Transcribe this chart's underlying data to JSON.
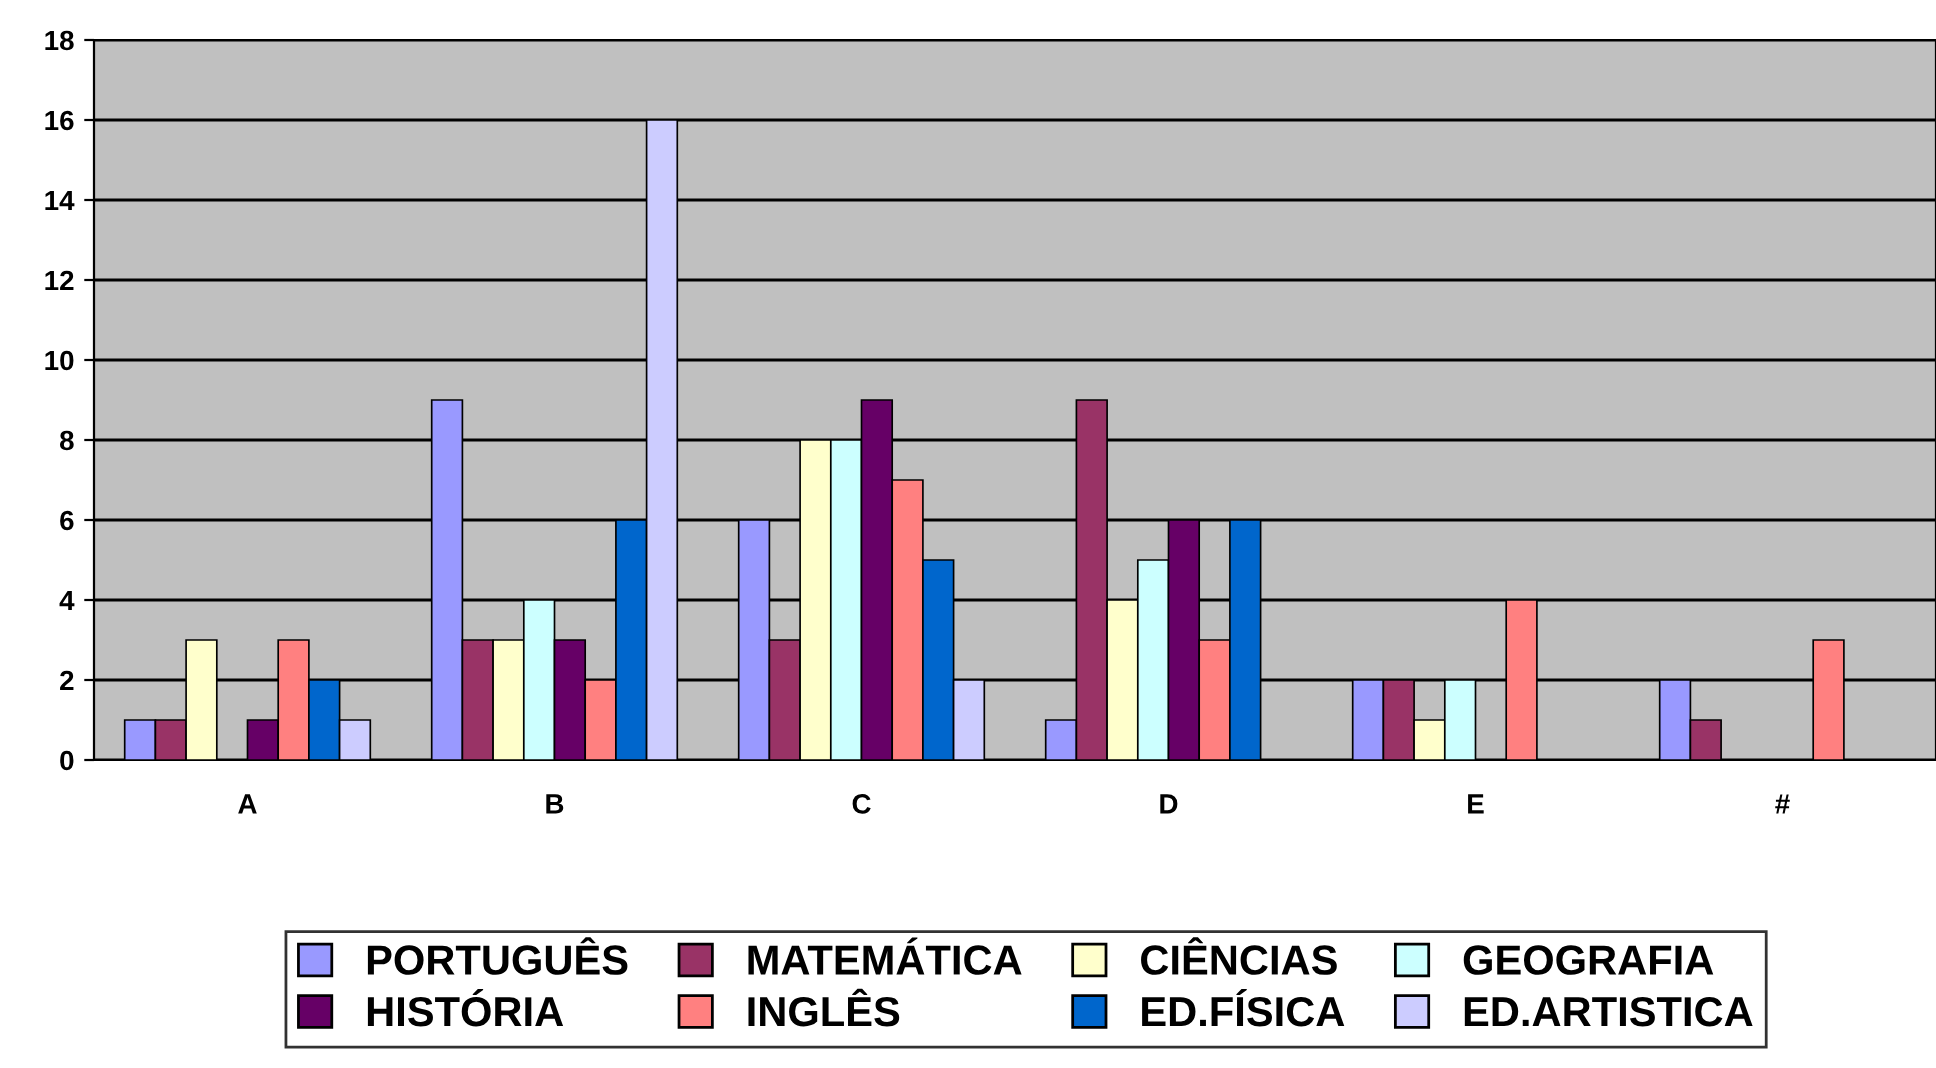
{
  "chart_data": {
    "type": "bar",
    "categories": [
      "A",
      "B",
      "C",
      "D",
      "E",
      "#"
    ],
    "series": [
      {
        "name": "PORTUGUÊS",
        "color": "#9999ff",
        "values": [
          1,
          9,
          6,
          1,
          2,
          2
        ]
      },
      {
        "name": "MATEMÁTICA",
        "color": "#993366",
        "values": [
          1,
          3,
          3,
          9,
          2,
          1
        ]
      },
      {
        "name": "CIÊNCIAS",
        "color": "#ffffcc",
        "values": [
          3,
          3,
          8,
          4,
          1,
          null
        ]
      },
      {
        "name": "GEOGRAFIA",
        "color": "#ccffff",
        "values": [
          null,
          4,
          8,
          5,
          2,
          null
        ]
      },
      {
        "name": "HISTÓRIA",
        "color": "#660066",
        "values": [
          1,
          3,
          9,
          6,
          null,
          null
        ]
      },
      {
        "name": "INGLÊS",
        "color": "#ff8080",
        "values": [
          3,
          2,
          7,
          3,
          4,
          3
        ]
      },
      {
        "name": "ED.FÍSICA",
        "color": "#0066cc",
        "values": [
          2,
          6,
          5,
          6,
          null,
          null
        ]
      },
      {
        "name": "ED.ARTISTICA",
        "color": "#ccccff",
        "values": [
          1,
          16,
          2,
          null,
          null,
          null
        ]
      }
    ],
    "ylim": [
      0,
      18
    ],
    "yticks": [
      0,
      2,
      4,
      6,
      8,
      10,
      12,
      14,
      16,
      18
    ],
    "grid": "y",
    "legend": "bottom"
  }
}
